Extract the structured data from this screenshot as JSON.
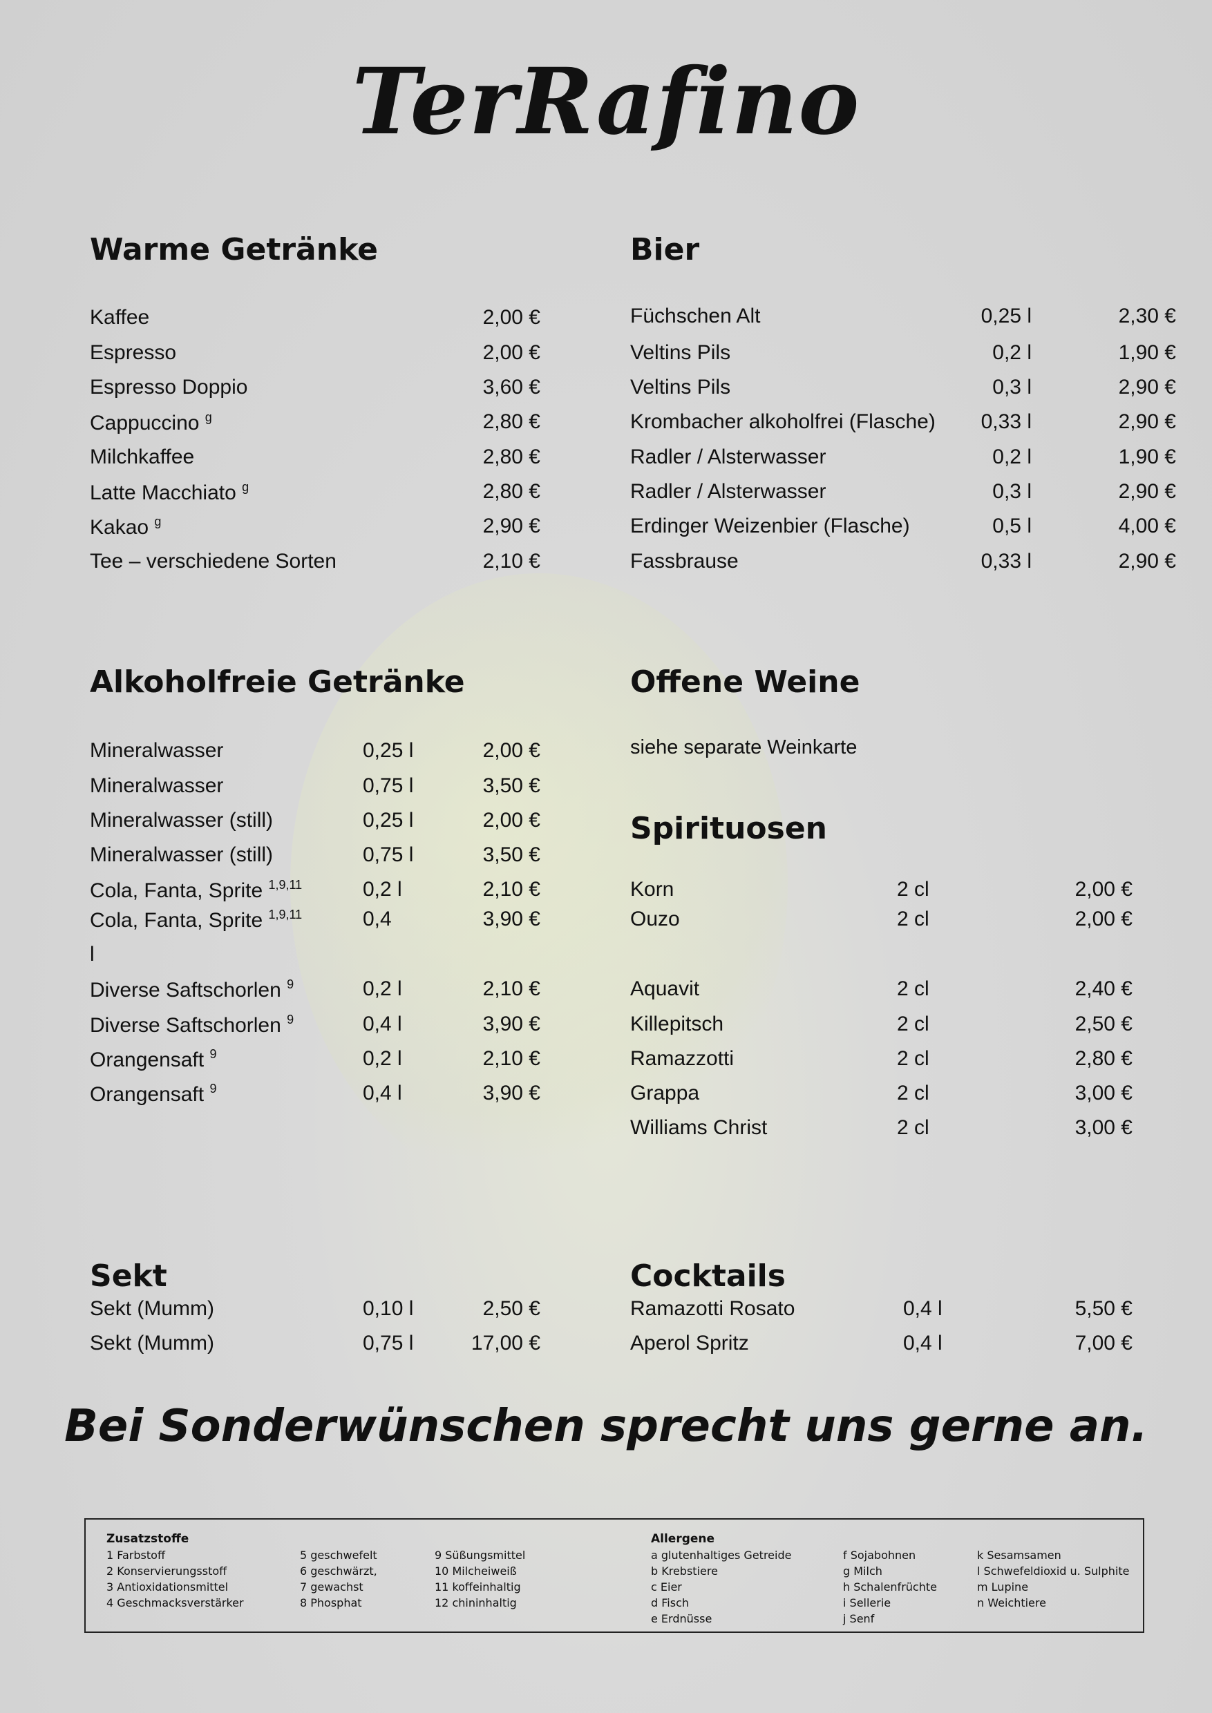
{
  "logo": "TerRafino",
  "warme": {
    "title": "Warme Getränke",
    "items": [
      {
        "name": "Kaffee",
        "sup": "",
        "price": "2,00 €"
      },
      {
        "name": "Espresso",
        "sup": "",
        "price": "2,00 €"
      },
      {
        "name": "Espresso Doppio",
        "sup": "",
        "price": "3,60 €"
      },
      {
        "name": "Cappuccino ",
        "sup": "g",
        "price": "2,80 €"
      },
      {
        "name": "Milchkaffee",
        "sup": "",
        "price": "2,80 €"
      },
      {
        "name": "Latte Macchiato ",
        "sup": "g",
        "price": "2,80 €"
      },
      {
        "name": "Kakao ",
        "sup": "g",
        "price": "2,90 €"
      },
      {
        "name": "Tee – verschiedene Sorten",
        "sup": "",
        "price": "2,10 €"
      }
    ]
  },
  "bier": {
    "title": "Bier",
    "items": [
      {
        "name": "Füchschen Alt",
        "size": "0,25 l",
        "price": "2,30 €"
      },
      {
        "name": "Veltins Pils",
        "size": "0,2 l",
        "price": "1,90 €"
      },
      {
        "name": "Veltins Pils",
        "size": "0,3 l",
        "price": "2,90 €"
      },
      {
        "name": "Krombacher alkoholfrei (Flasche)",
        "size": "0,33 l",
        "price": "2,90 €"
      },
      {
        "name": "Radler / Alsterwasser",
        "size": "0,2 l",
        "price": "1,90 €"
      },
      {
        "name": "Radler / Alsterwasser",
        "size": "0,3 l",
        "price": "2,90 €"
      },
      {
        "name": "Erdinger Weizenbier (Flasche)",
        "size": "0,5 l",
        "price": "4,00 €"
      },
      {
        "name": "Fassbrause",
        "size": "0,33 l",
        "price": "2,90 €"
      }
    ]
  },
  "alkoholfrei": {
    "title": "Alkoholfreie Getränke",
    "items": [
      {
        "name": "Mineralwasser",
        "sup": "",
        "size": "0,25 l",
        "price": "2,00 €"
      },
      {
        "name": "Mineralwasser",
        "sup": "",
        "size": "0,75 l",
        "price": "3,50 €"
      },
      {
        "name": "Mineralwasser (still)",
        "sup": "",
        "size": "0,25 l",
        "price": "2,00 €"
      },
      {
        "name": "Mineralwasser (still)",
        "sup": "",
        "size": "0,75 l",
        "price": "3,50 €"
      },
      {
        "name": "Cola, Fanta, Sprite ",
        "sup": "1,9,11",
        "size": "0,2 l",
        "price": "2,10 €"
      },
      {
        "name": "Cola, Fanta, Sprite ",
        "sup": "1,9,11",
        "size": "0,4",
        "price": "3,90 €"
      },
      {
        "name": "l",
        "sup": "",
        "size": "",
        "price": ""
      },
      {
        "name": "Diverse Saftschorlen ",
        "sup": "9",
        "size": "0,2 l",
        "price": "2,10 €"
      },
      {
        "name": "Diverse Saftschorlen ",
        "sup": "9",
        "size": "0,4 l",
        "price": "3,90 €"
      },
      {
        "name": "Orangensaft ",
        "sup": "9",
        "size": "0,2 l",
        "price": "2,10 €"
      },
      {
        "name": "Orangensaft ",
        "sup": "9",
        "size": "0,4 l",
        "price": "3,90 €"
      }
    ]
  },
  "weine": {
    "title": "Offene Weine",
    "note": "siehe separate Weinkarte"
  },
  "spirituosen": {
    "title": "Spirituosen",
    "items": [
      {
        "name": "Korn",
        "size": "2 cl",
        "price": "2,00 €"
      },
      {
        "name": "Ouzo",
        "size": "2 cl",
        "price": "2,00 €"
      },
      {
        "name": "Aquavit",
        "size": "2 cl",
        "price": "2,40 €"
      },
      {
        "name": "Killepitsch",
        "size": "2 cl",
        "price": "2,50 €"
      },
      {
        "name": "Ramazzotti",
        "size": "2 cl",
        "price": "2,80 €"
      },
      {
        "name": "Grappa",
        "size": "2 cl",
        "price": "3,00 €"
      },
      {
        "name": "Williams Christ",
        "size": "2 cl",
        "price": "3,00 €"
      }
    ]
  },
  "sekt": {
    "title": "Sekt",
    "items": [
      {
        "name": "Sekt (Mumm)",
        "size": "0,10 l",
        "price": "2,50 €"
      },
      {
        "name": "Sekt (Mumm)",
        "size": "0,75 l",
        "price": "17,00 €"
      }
    ]
  },
  "cocktails": {
    "title": "Cocktails",
    "items": [
      {
        "name": "Ramazotti Rosato",
        "size": "0,4 l",
        "price": "5,50 €"
      },
      {
        "name": "Aperol Spritz",
        "size": "0,4 l",
        "price": "7,00 €"
      }
    ]
  },
  "slogan": "Bei Sonderwünschen sprecht uns gerne an.",
  "legend": {
    "zusatz_title": "Zusatzstoffe",
    "zusatz_col1": [
      "1   Farbstoff",
      "2   Konservierungsstoff",
      "3   Antioxidationsmittel",
      "4   Geschmacksverstärker"
    ],
    "zusatz_col2": [
      "5   geschwefelt",
      "6   geschwärzt,",
      "7   gewachst",
      "8   Phosphat"
    ],
    "zusatz_col3": [
      "9     Süßungsmittel",
      "10   Milcheiweiß",
      "11   koffeinhaltig",
      "12   chininhaltig"
    ],
    "allergene_title": "Allergene",
    "allergene_col1": [
      "a   glutenhaltiges Getreide",
      "b   Krebstiere",
      "c   Eier",
      "d   Fisch",
      "e   Erdnüsse"
    ],
    "allergene_col2": [
      "f   Sojabohnen",
      "g   Milch",
      "h   Schalenfrüchte",
      "i    Sellerie",
      "j    Senf"
    ],
    "allergene_col3": [
      "k   Sesamsamen",
      "l    Schwefeldioxid u. Sulphite",
      "m  Lupine",
      "n   Weichtiere"
    ]
  }
}
